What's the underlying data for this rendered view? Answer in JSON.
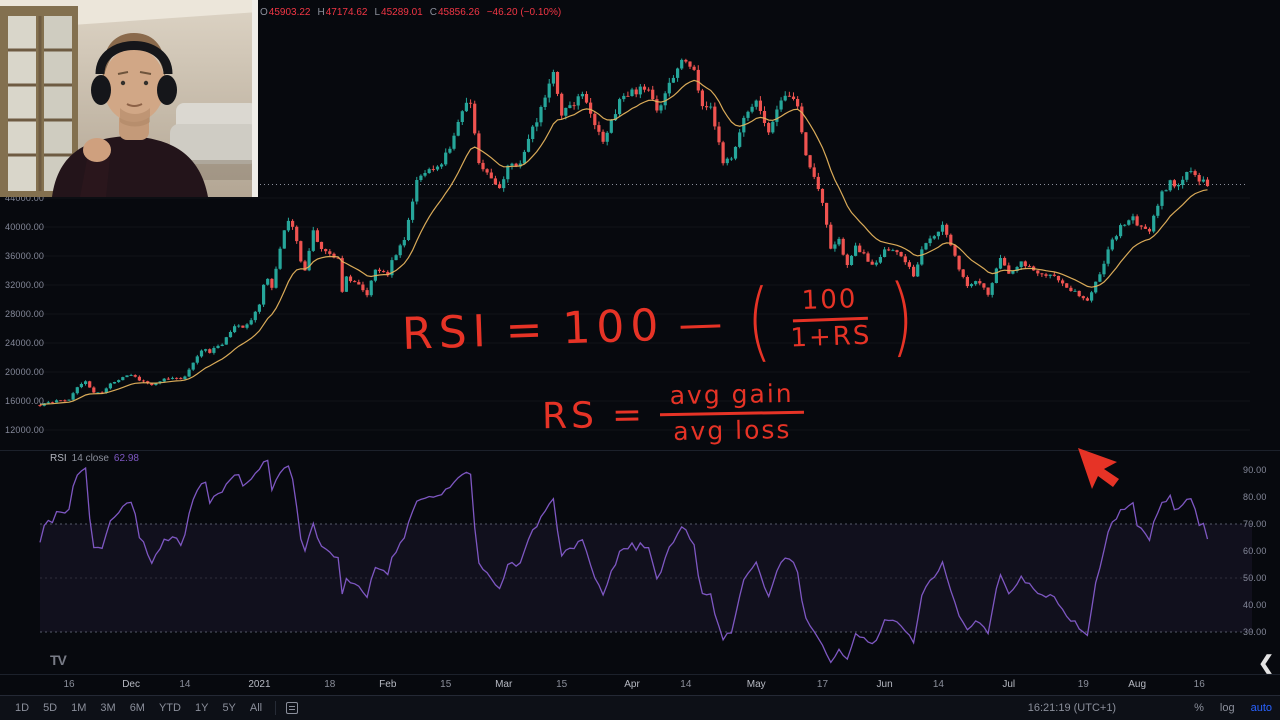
{
  "ohlc": {
    "o_key": "O",
    "open": "45903.22",
    "h_key": "H",
    "high": "47174.62",
    "l_key": "L",
    "low": "45289.01",
    "c_key": "C",
    "close": "45856.26",
    "change": "−46.20 (−0.10%)"
  },
  "price_axis": {
    "labels": [
      "44000.00",
      "40000.00",
      "36000.00",
      "32000.00",
      "28000.00",
      "24000.00",
      "20000.00",
      "16000.00",
      "12000.00"
    ]
  },
  "rsi_axis": {
    "labels": [
      "90.00",
      "80.00",
      "70.00",
      "60.00",
      "50.00",
      "40.00",
      "30.00"
    ]
  },
  "rsi_legend": {
    "name": "RSI",
    "params": "14 close",
    "value": "62.98"
  },
  "time_axis": {
    "labels": [
      "16",
      "Dec",
      "14",
      "2021",
      "18",
      "Feb",
      "15",
      "Mar",
      "15",
      "Apr",
      "14",
      "May",
      "17",
      "Jun",
      "14",
      "Jul",
      "19",
      "Aug",
      "16"
    ]
  },
  "toolbar": {
    "ranges": [
      "1D",
      "5D",
      "1M",
      "3M",
      "6M",
      "YTD",
      "1Y",
      "5Y",
      "All"
    ],
    "clock": "16:21:19 (UTC+1)",
    "percent": "%",
    "log": "log",
    "auto": "auto"
  },
  "annotations": {
    "f1_lhs": "RSI",
    "f1_eq": "=",
    "f1_term": "100",
    "f1_minus": "—",
    "f1_open": "(",
    "f1_num": "100",
    "f1_den": "1+RS",
    "f1_close": ")",
    "f2_lhs": "RS",
    "f2_eq": "=",
    "f2_num": "avg gain",
    "f2_den": "avg loss"
  },
  "logo": "TV",
  "collapse": "❮",
  "chart_data": {
    "type": "candlestick",
    "title": "",
    "y_ticks": [
      12000,
      16000,
      20000,
      24000,
      28000,
      32000,
      36000,
      40000,
      44000
    ],
    "current_price": 45856.26,
    "x_labels": [
      "16",
      "Dec",
      "14",
      "2021",
      "18",
      "Feb",
      "15",
      "Mar",
      "15",
      "Apr",
      "14",
      "May",
      "17",
      "Jun",
      "14",
      "Jul",
      "19",
      "Aug",
      "16"
    ],
    "candle_up_color": "#26a69a",
    "candle_down_color": "#ef5350",
    "ma_color": "#e5b35d",
    "price_anchors": [
      [
        -30,
        14100
      ],
      [
        -26,
        15200
      ],
      [
        -22,
        15600
      ],
      [
        -18,
        16000
      ],
      [
        -14,
        15900
      ],
      [
        -10,
        15500
      ],
      [
        -7,
        15400
      ],
      [
        -4,
        15900
      ],
      [
        -2,
        16100
      ],
      [
        0,
        16320
      ],
      [
        2,
        17800
      ],
      [
        4,
        18650
      ],
      [
        6,
        17150
      ],
      [
        8,
        17100
      ],
      [
        10,
        18250
      ],
      [
        13,
        19400
      ],
      [
        15,
        19700
      ],
      [
        17,
        18800
      ],
      [
        20,
        18300
      ],
      [
        23,
        19150
      ],
      [
        26,
        19000
      ],
      [
        28,
        19250
      ],
      [
        30,
        21350
      ],
      [
        32,
        23100
      ],
      [
        34,
        22800
      ],
      [
        37,
        23800
      ],
      [
        40,
        26500
      ],
      [
        42,
        26280
      ],
      [
        44,
        27100
      ],
      [
        46,
        29300
      ],
      [
        47,
        32200
      ],
      [
        48,
        33000
      ],
      [
        49,
        31500
      ],
      [
        50,
        34000
      ],
      [
        51,
        36800
      ],
      [
        52,
        39400
      ],
      [
        53,
        40600
      ],
      [
        54,
        40100
      ],
      [
        55,
        38300
      ],
      [
        56,
        35500
      ],
      [
        57,
        34000
      ],
      [
        59,
        39200
      ],
      [
        61,
        36800
      ],
      [
        63,
        36600
      ],
      [
        65,
        35500
      ],
      [
        66,
        30800
      ],
      [
        67,
        33000
      ],
      [
        70,
        32200
      ],
      [
        72,
        30400
      ],
      [
        74,
        34300
      ],
      [
        77,
        33500
      ],
      [
        78,
        35500
      ],
      [
        81,
        38300
      ],
      [
        84,
        46400
      ],
      [
        87,
        47900
      ],
      [
        90,
        48700
      ],
      [
        93,
        52200
      ],
      [
        95,
        55900
      ],
      [
        97,
        57500
      ],
      [
        99,
        48800
      ],
      [
        102,
        46300
      ],
      [
        104,
        45100
      ],
      [
        106,
        48400
      ],
      [
        109,
        48900
      ],
      [
        113,
        54900
      ],
      [
        117,
        61200
      ],
      [
        119,
        55600
      ],
      [
        121,
        56800
      ],
      [
        124,
        58100
      ],
      [
        129,
        51300
      ],
      [
        133,
        57600
      ],
      [
        136,
        58700
      ],
      [
        140,
        59100
      ],
      [
        142,
        56000
      ],
      [
        145,
        59800
      ],
      [
        148,
        63500
      ],
      [
        149,
        63100
      ],
      [
        151,
        61600
      ],
      [
        153,
        56200
      ],
      [
        155,
        56500
      ],
      [
        158,
        49000
      ],
      [
        160,
        49100
      ],
      [
        163,
        54800
      ],
      [
        166,
        57800
      ],
      [
        169,
        53200
      ],
      [
        172,
        57300
      ],
      [
        174,
        58200
      ],
      [
        176,
        56700
      ],
      [
        178,
        49700
      ],
      [
        180,
        46700
      ],
      [
        182,
        43500
      ],
      [
        184,
        36700
      ],
      [
        186,
        38100
      ],
      [
        188,
        34700
      ],
      [
        190,
        37300
      ],
      [
        192,
        36400
      ],
      [
        194,
        34600
      ],
      [
        197,
        36600
      ],
      [
        200,
        36800
      ],
      [
        204,
        33400
      ],
      [
        206,
        36700
      ],
      [
        209,
        39000
      ],
      [
        211,
        40100
      ],
      [
        214,
        35800
      ],
      [
        217,
        31600
      ],
      [
        219,
        32500
      ],
      [
        221,
        31500
      ],
      [
        222,
        30500
      ],
      [
        225,
        35900
      ],
      [
        227,
        33500
      ],
      [
        230,
        35300
      ],
      [
        233,
        33900
      ],
      [
        236,
        33500
      ],
      [
        239,
        32700
      ],
      [
        242,
        31400
      ],
      [
        246,
        29800
      ],
      [
        249,
        33600
      ],
      [
        252,
        38100
      ],
      [
        254,
        40000
      ],
      [
        257,
        41600
      ],
      [
        258,
        39900
      ],
      [
        261,
        39700
      ],
      [
        264,
        44600
      ],
      [
        266,
        46300
      ],
      [
        268,
        45600
      ],
      [
        270,
        47800
      ],
      [
        272,
        47000
      ],
      [
        275,
        45900
      ]
    ],
    "indicator": {
      "type": "line",
      "name": "RSI 14 close",
      "last": 62.98,
      "color": "#7e57c2",
      "band": [
        30,
        70
      ],
      "axis_range": [
        30,
        90
      ]
    }
  }
}
